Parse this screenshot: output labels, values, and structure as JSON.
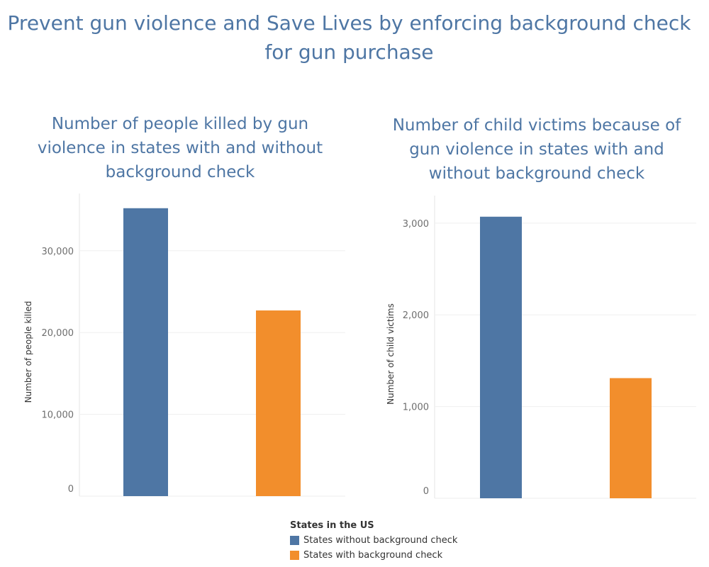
{
  "title": "Prevent gun  violence and Save Lives by enforcing background check\nfor gun purchase",
  "colors": {
    "without": "#4e76a4",
    "with": "#f28e2c"
  },
  "legend": {
    "title": "States in the US",
    "items": [
      {
        "label": "States without background check",
        "color": "#4e76a4"
      },
      {
        "label": "States with background check",
        "color": "#f28e2c"
      }
    ]
  },
  "chart_data": [
    {
      "type": "bar",
      "title": "Number of people killed by gun\nviolence in states with and without\nbackground check",
      "ylabel": "Number of people killed",
      "categories": [
        "States without background check",
        "States with background check"
      ],
      "values": [
        35200,
        22700
      ],
      "ylim": [
        0,
        37000
      ],
      "yticks": [
        0,
        10000,
        20000,
        30000
      ],
      "ytick_labels": [
        "0",
        "10,000",
        "20,000",
        "30,000"
      ],
      "grid": true
    },
    {
      "type": "bar",
      "title": "Number of child victims because of\ngun violence in states with and\nwithout background check",
      "ylabel": "Number of child victims",
      "categories": [
        "States without background check",
        "States with background check"
      ],
      "values": [
        3070,
        1310
      ],
      "ylim": [
        0,
        3300
      ],
      "yticks": [
        0,
        1000,
        2000,
        3000
      ],
      "ytick_labels": [
        "0",
        "1,000",
        "2,000",
        "3,000"
      ],
      "grid": true
    }
  ]
}
